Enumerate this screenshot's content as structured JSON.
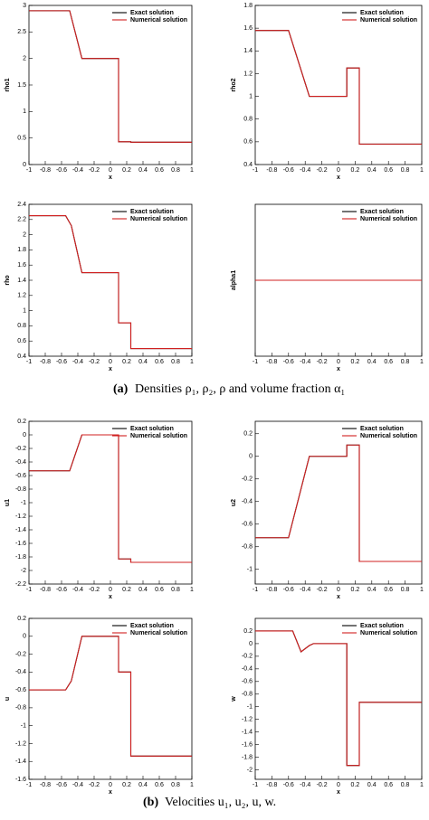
{
  "chart_data": [
    {
      "type": "line",
      "ylabel": "rho1",
      "xlabel": "x",
      "legend": "upper right",
      "xlim": [
        -1,
        1
      ],
      "xticks": [
        -1,
        -0.8,
        -0.6,
        -0.4,
        -0.2,
        0,
        0.2,
        0.4,
        0.6,
        0.8,
        1
      ],
      "ylim": [
        0,
        3
      ],
      "yticks": [
        0,
        0.5,
        1,
        1.5,
        2,
        2.5,
        3
      ],
      "x": [
        -1,
        -0.5,
        -0.35,
        0.1,
        0.1,
        0.25,
        0.25,
        1
      ],
      "series": [
        {
          "name": "Exact solution",
          "color": "#000000",
          "values": [
            2.9,
            2.9,
            2.0,
            2.0,
            0.43,
            0.43,
            0.42,
            0.42
          ]
        },
        {
          "name": "Numerical solution",
          "color": "#d02020",
          "values": [
            2.9,
            2.9,
            2.0,
            2.0,
            0.43,
            0.43,
            0.42,
            0.42
          ]
        }
      ]
    },
    {
      "type": "line",
      "ylabel": "rho2",
      "xlabel": "x",
      "legend": "upper right",
      "xlim": [
        -1,
        1
      ],
      "xticks": [
        -1,
        -0.8,
        -0.6,
        -0.4,
        -0.2,
        0,
        0.2,
        0.4,
        0.6,
        0.8,
        1
      ],
      "ylim": [
        0.4,
        1.8
      ],
      "yticks": [
        0.4,
        0.6,
        0.8,
        1,
        1.2,
        1.4,
        1.6,
        1.8
      ],
      "x": [
        -1,
        -0.6,
        -0.35,
        0.1,
        0.1,
        0.25,
        0.25,
        1
      ],
      "series": [
        {
          "name": "Exact solution",
          "color": "#000000",
          "values": [
            1.58,
            1.58,
            1.0,
            1.0,
            1.25,
            1.25,
            0.58,
            0.58
          ]
        },
        {
          "name": "Numerical solution",
          "color": "#d02020",
          "values": [
            1.58,
            1.58,
            1.0,
            1.0,
            1.25,
            1.25,
            0.58,
            0.58
          ]
        }
      ]
    },
    {
      "type": "line",
      "ylabel": "rho",
      "xlabel": "x",
      "legend": "upper right",
      "xlim": [
        -1,
        1
      ],
      "xticks": [
        -1,
        -0.8,
        -0.6,
        -0.4,
        -0.2,
        0,
        0.2,
        0.4,
        0.6,
        0.8,
        1
      ],
      "ylim": [
        0.4,
        2.4
      ],
      "yticks": [
        0.4,
        0.6,
        0.8,
        1,
        1.2,
        1.4,
        1.6,
        1.8,
        2,
        2.2,
        2.4
      ],
      "x": [
        -1,
        -0.55,
        -0.48,
        -0.35,
        0.1,
        0.1,
        0.25,
        0.25,
        1
      ],
      "series": [
        {
          "name": "Exact solution",
          "color": "#000000",
          "values": [
            2.25,
            2.25,
            2.12,
            1.5,
            1.5,
            0.84,
            0.84,
            0.5,
            0.5
          ]
        },
        {
          "name": "Numerical solution",
          "color": "#d02020",
          "values": [
            2.25,
            2.25,
            2.12,
            1.5,
            1.5,
            0.84,
            0.84,
            0.5,
            0.5
          ]
        }
      ]
    },
    {
      "type": "line",
      "ylabel": "alpha1",
      "xlabel": "x",
      "legend": "upper right",
      "xlim": [
        -1,
        1
      ],
      "xticks": [
        -1,
        -0.8,
        -0.6,
        -0.4,
        -0.2,
        0,
        0.2,
        0.4,
        0.6,
        0.8,
        1
      ],
      "ylim": [
        0,
        1
      ],
      "yticks": [],
      "x": [
        -1,
        1
      ],
      "series": [
        {
          "name": "Exact solution",
          "color": "#000000",
          "values": [
            0.5,
            0.5
          ]
        },
        {
          "name": "Numerical solution",
          "color": "#d02020",
          "values": [
            0.5,
            0.5
          ]
        }
      ]
    },
    {
      "type": "line",
      "ylabel": "u1",
      "xlabel": "x",
      "legend": "upper right",
      "xlim": [
        -1,
        1
      ],
      "xticks": [
        -1,
        -0.8,
        -0.6,
        -0.4,
        -0.2,
        0,
        0.2,
        0.4,
        0.6,
        0.8,
        1
      ],
      "ylim": [
        -2.2,
        0.2
      ],
      "yticks": [
        -2.2,
        -2,
        -1.8,
        -1.6,
        -1.4,
        -1.2,
        -1,
        -0.8,
        -0.6,
        -0.4,
        -0.2,
        0,
        0.2
      ],
      "x": [
        -1,
        -0.5,
        -0.35,
        0.1,
        0.1,
        0.25,
        0.25,
        1
      ],
      "series": [
        {
          "name": "Exact solution",
          "color": "#000000",
          "values": [
            -0.53,
            -0.53,
            0,
            0,
            -1.83,
            -1.83,
            -1.88,
            -1.88
          ]
        },
        {
          "name": "Numerical solution",
          "color": "#d02020",
          "values": [
            -0.53,
            -0.53,
            0,
            0,
            -1.83,
            -1.83,
            -1.88,
            -1.88
          ]
        }
      ]
    },
    {
      "type": "line",
      "ylabel": "u2",
      "xlabel": "x",
      "legend": "upper right",
      "xlim": [
        -1,
        1
      ],
      "xticks": [
        -1,
        -0.8,
        -0.6,
        -0.4,
        -0.2,
        0,
        0.2,
        0.4,
        0.6,
        0.8,
        1
      ],
      "ylim": [
        -1.13,
        0.31
      ],
      "yticks": [
        -1,
        -0.8,
        -0.6,
        -0.4,
        -0.2,
        0,
        0.2
      ],
      "x": [
        -1,
        -0.6,
        -0.35,
        0.1,
        0.1,
        0.25,
        0.25,
        1
      ],
      "series": [
        {
          "name": "Exact solution",
          "color": "#000000",
          "values": [
            -0.72,
            -0.72,
            0,
            0,
            0.1,
            0.1,
            -0.93,
            -0.93
          ]
        },
        {
          "name": "Numerical solution",
          "color": "#d02020",
          "values": [
            -0.72,
            -0.72,
            0,
            0,
            0.1,
            0.1,
            -0.93,
            -0.93
          ]
        }
      ]
    },
    {
      "type": "line",
      "ylabel": "u",
      "xlabel": "x",
      "legend": "upper right",
      "xlim": [
        -1,
        1
      ],
      "xticks": [
        -1,
        -0.8,
        -0.6,
        -0.4,
        -0.2,
        0,
        0.2,
        0.4,
        0.6,
        0.8,
        1
      ],
      "ylim": [
        -1.6,
        0.2
      ],
      "yticks": [
        -1.6,
        -1.4,
        -1.2,
        -1,
        -0.8,
        -0.6,
        -0.4,
        -0.2,
        0,
        0.2
      ],
      "x": [
        -1,
        -0.55,
        -0.48,
        -0.35,
        0.1,
        0.1,
        0.25,
        0.25,
        1
      ],
      "series": [
        {
          "name": "Exact solution",
          "color": "#000000",
          "values": [
            -0.6,
            -0.6,
            -0.5,
            0,
            0,
            -0.4,
            -0.4,
            -1.34,
            -1.34
          ]
        },
        {
          "name": "Numerical solution",
          "color": "#d02020",
          "values": [
            -0.6,
            -0.6,
            -0.5,
            0,
            0,
            -0.4,
            -0.4,
            -1.34,
            -1.34
          ]
        }
      ]
    },
    {
      "type": "line",
      "ylabel": "w",
      "xlabel": "x",
      "legend": "upper right",
      "xlim": [
        -1,
        1
      ],
      "xticks": [
        -1,
        -0.8,
        -0.6,
        -0.4,
        -0.2,
        0,
        0.2,
        0.4,
        0.6,
        0.8,
        1
      ],
      "ylim": [
        -2.15,
        0.4
      ],
      "yticks": [
        -2,
        -1.8,
        -1.6,
        -1.4,
        -1.2,
        -1,
        -0.8,
        -0.6,
        -0.4,
        -0.2,
        0,
        0.2
      ],
      "x": [
        -1,
        -0.55,
        -0.45,
        -0.35,
        -0.3,
        0.1,
        0.1,
        0.25,
        0.25,
        1
      ],
      "series": [
        {
          "name": "Exact solution",
          "color": "#000000",
          "values": [
            0.2,
            0.2,
            -0.13,
            -0.03,
            0,
            0,
            -1.93,
            -1.93,
            -0.93,
            -0.93
          ]
        },
        {
          "name": "Numerical solution",
          "color": "#d02020",
          "values": [
            0.2,
            0.2,
            -0.13,
            -0.03,
            0,
            0,
            -1.93,
            -1.93,
            -0.93,
            -0.93
          ]
        }
      ]
    }
  ],
  "captions": [
    {
      "label": "(a)",
      "text": "Densities ρ₁, ρ₂, ρ and volume fraction α₁"
    },
    {
      "label": "(b)",
      "text": "Velocities u₁, u₂, u, w."
    }
  ]
}
